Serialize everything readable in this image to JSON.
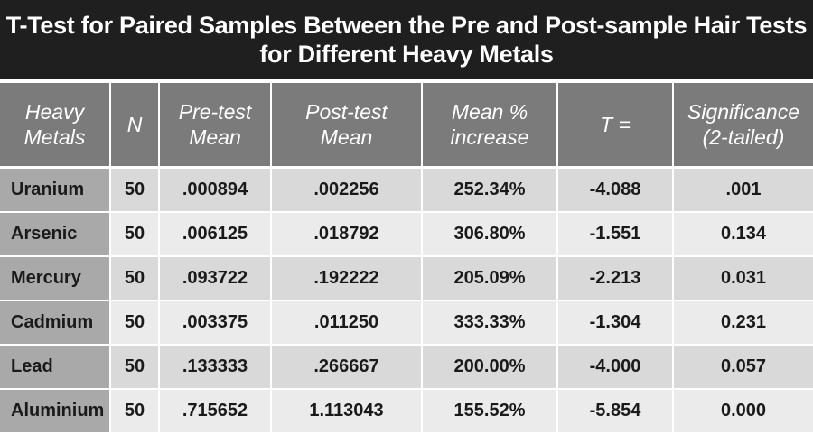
{
  "title": {
    "line1": "T-Test for Paired Samples Between the Pre and Post-sample Hair Tests",
    "line2": "for Different Heavy Metals"
  },
  "headers": [
    {
      "l1": "Heavy",
      "l2": "Metals"
    },
    {
      "l1": "N",
      "l2": ""
    },
    {
      "l1": "Pre-test",
      "l2": "Mean"
    },
    {
      "l1": "Post-test",
      "l2": "Mean"
    },
    {
      "l1": "Mean %",
      "l2": "increase"
    },
    {
      "l1": "T =",
      "l2": ""
    },
    {
      "l1": "Significance",
      "l2": "(2-tailed)"
    }
  ],
  "rows": [
    [
      "Uranium",
      "50",
      ".000894",
      ".002256",
      "252.34%",
      "-4.088",
      ".001"
    ],
    [
      "Arsenic",
      "50",
      ".006125",
      ".018792",
      "306.80%",
      "-1.551",
      "0.134"
    ],
    [
      "Mercury",
      "50",
      ".093722",
      ".192222",
      "205.09%",
      "-2.213",
      "0.031"
    ],
    [
      "Cadmium",
      "50",
      ".003375",
      ".011250",
      "333.33%",
      "-1.304",
      "0.231"
    ],
    [
      "Lead",
      "50",
      ".133333",
      ".266667",
      "200.00%",
      "-4.000",
      "0.057"
    ],
    [
      "Aluminium",
      "50",
      ".715652",
      "1.113043",
      "155.52%",
      "-5.854",
      "0.000"
    ]
  ]
}
